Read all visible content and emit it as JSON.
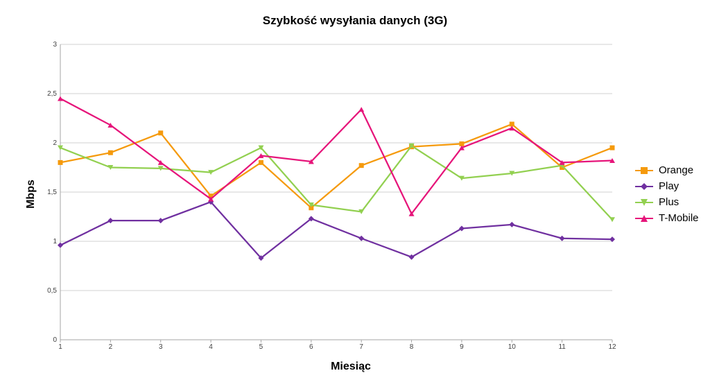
{
  "chart_data": {
    "type": "line",
    "title": "Szybkość wysyłania danych (3G)",
    "xlabel": "Miesiąc",
    "ylabel": "Mbps",
    "x": [
      1,
      2,
      3,
      4,
      5,
      6,
      7,
      8,
      9,
      10,
      11,
      12
    ],
    "ylim": [
      0,
      3
    ],
    "yticks": [
      "0",
      "0,5",
      "1",
      "1,5",
      "2",
      "2,5",
      "3"
    ],
    "ytick_values": [
      0,
      0.5,
      1,
      1.5,
      2,
      2.5,
      3
    ],
    "grid": "horizontal",
    "legend_position": "right",
    "series": [
      {
        "name": "Orange",
        "color": "#F59A0C",
        "marker": "square",
        "values": [
          1.8,
          1.9,
          2.1,
          1.46,
          1.8,
          1.34,
          1.77,
          1.96,
          1.99,
          2.19,
          1.75,
          1.95
        ]
      },
      {
        "name": "Play",
        "color": "#7030A0",
        "marker": "diamond",
        "values": [
          0.96,
          1.21,
          1.21,
          1.4,
          0.83,
          1.23,
          1.03,
          0.84,
          1.13,
          1.17,
          1.03,
          1.02
        ]
      },
      {
        "name": "Plus",
        "color": "#92D050",
        "marker": "triangle-down",
        "values": [
          1.95,
          1.75,
          1.74,
          1.7,
          1.95,
          1.37,
          1.3,
          1.97,
          1.64,
          1.69,
          1.77,
          1.22
        ]
      },
      {
        "name": "T-Mobile",
        "color": "#E6157A",
        "marker": "triangle-up",
        "values": [
          2.45,
          2.18,
          1.8,
          1.43,
          1.87,
          1.81,
          2.34,
          1.28,
          1.95,
          2.15,
          1.8,
          1.82
        ]
      }
    ]
  }
}
